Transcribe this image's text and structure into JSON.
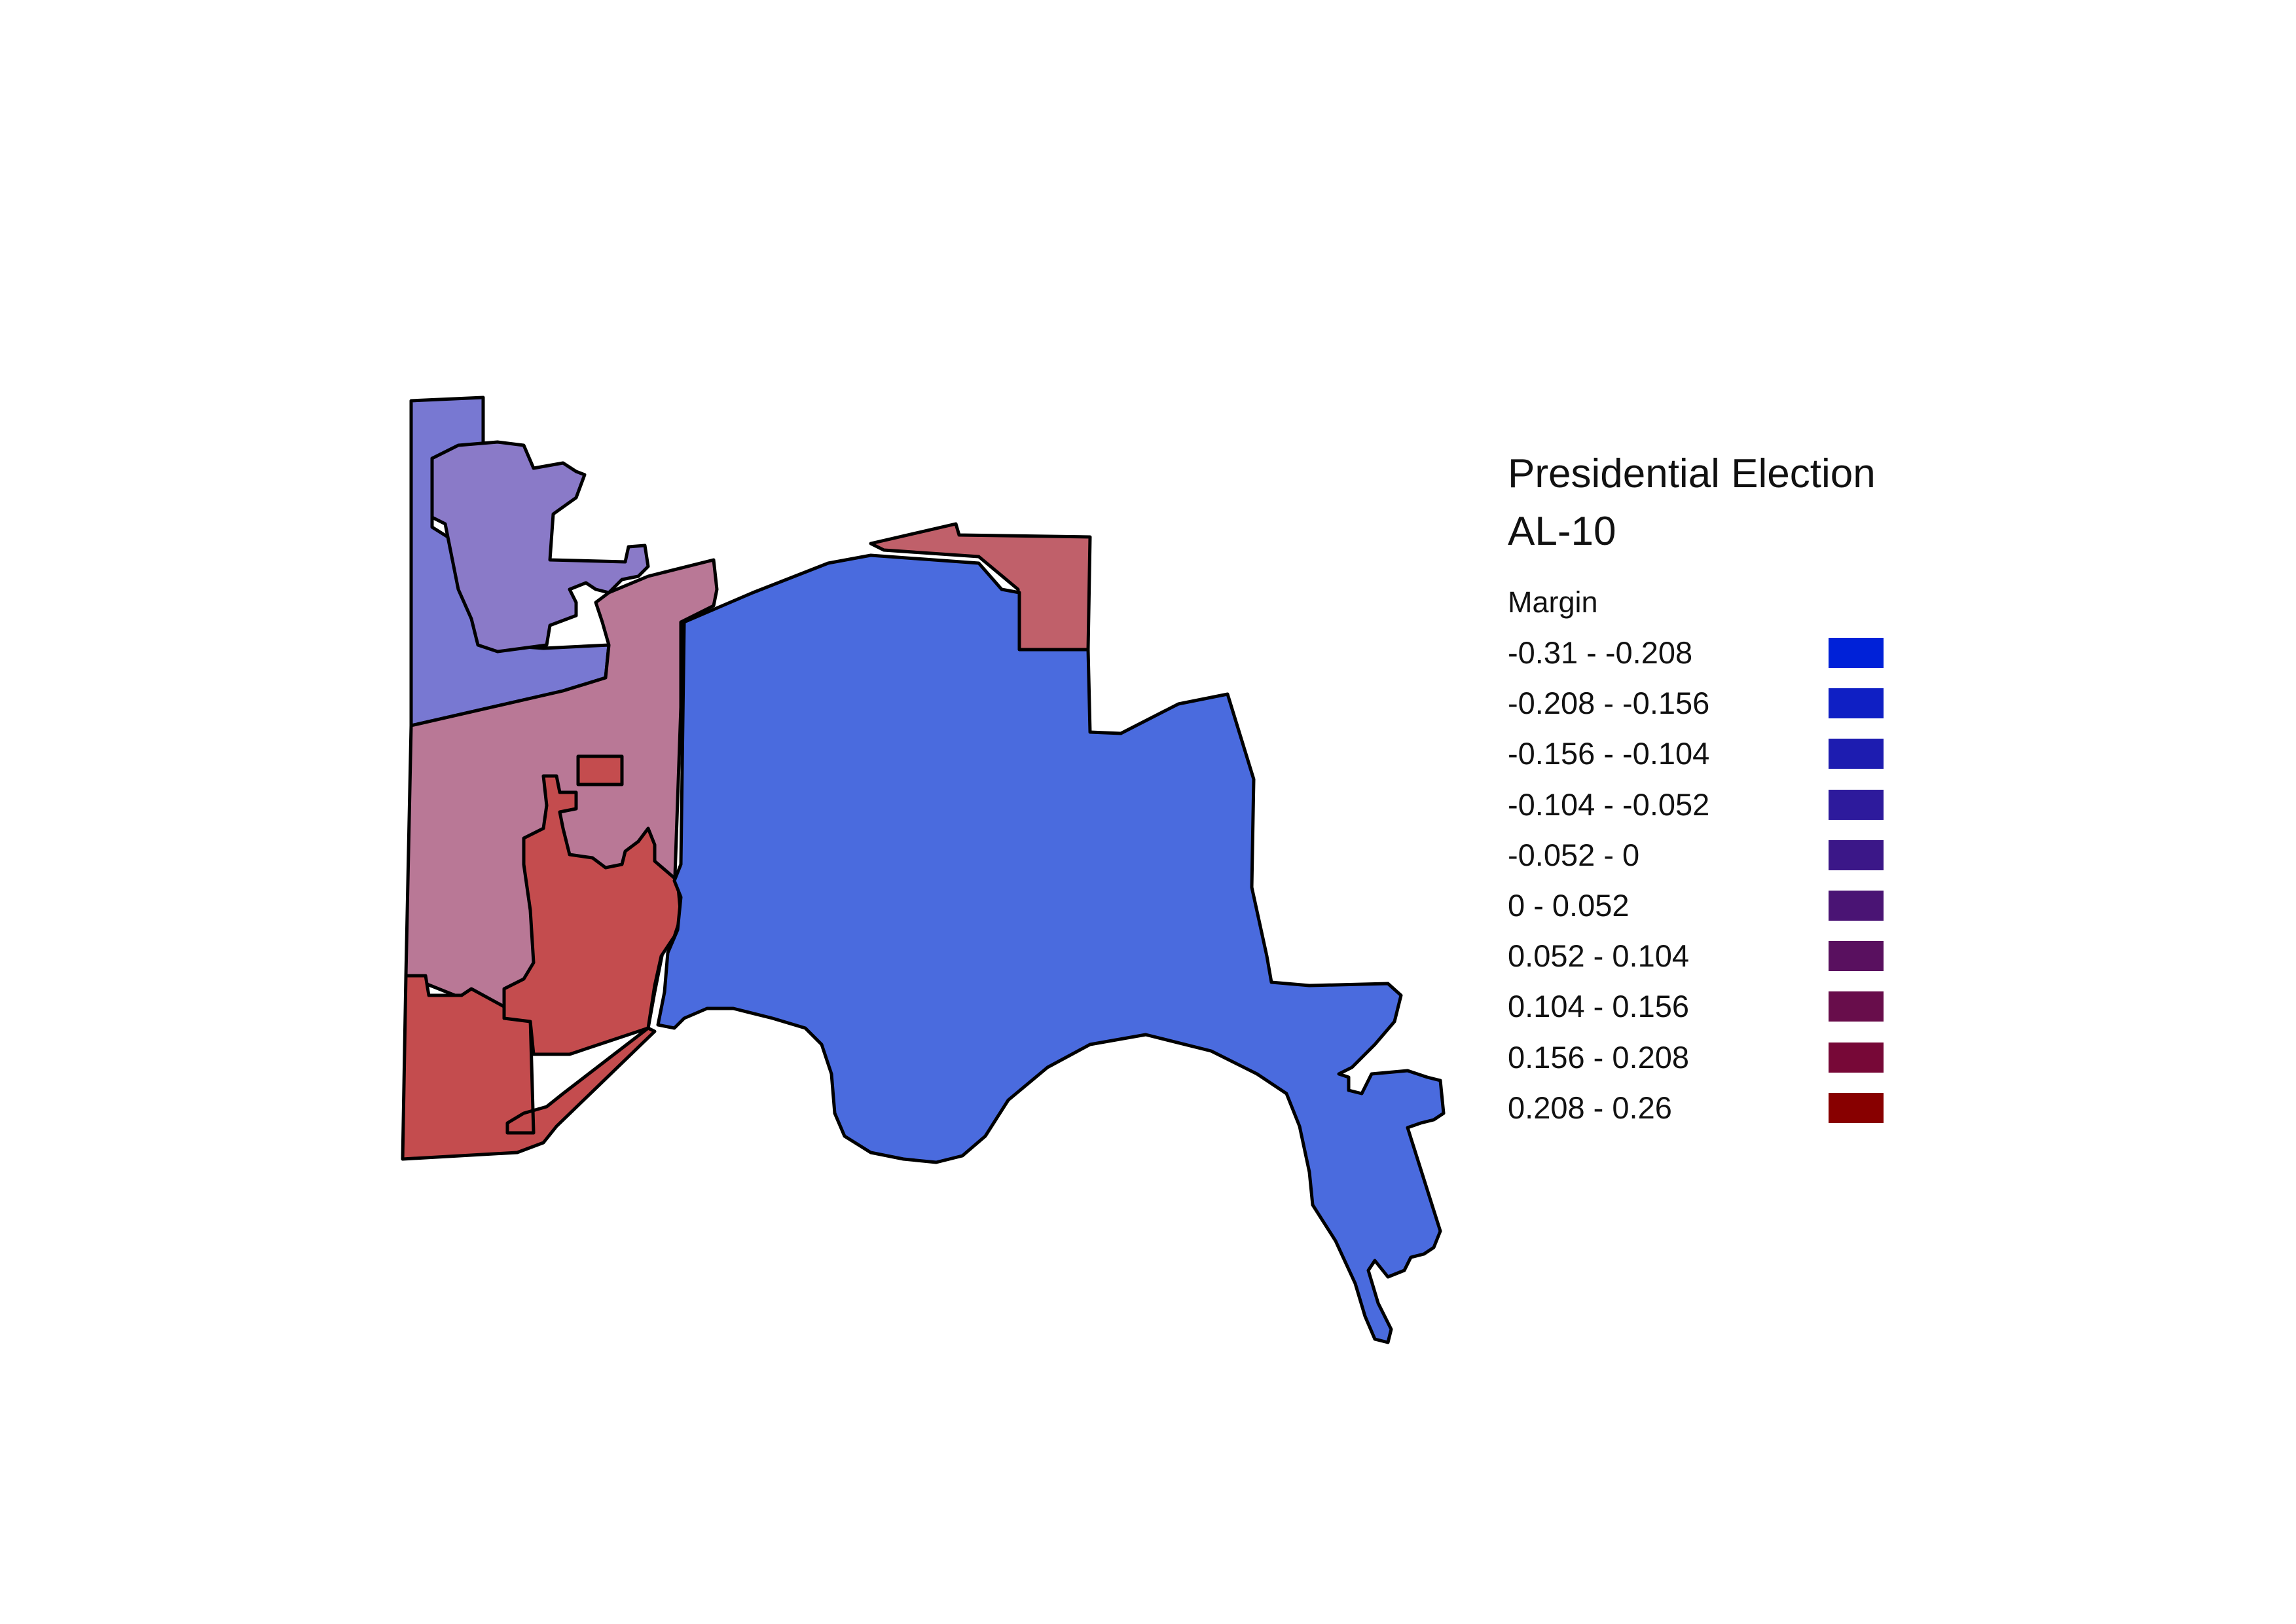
{
  "legend": {
    "title_line1": "Presidential Election",
    "title_line2": "AL-10",
    "subtitle": "Margin",
    "items": [
      {
        "label": "-0.31 - -0.208",
        "color": "#0021d8"
      },
      {
        "label": "-0.208 - -0.156",
        "color": "#0f1fc4"
      },
      {
        "label": "-0.156 - -0.104",
        "color": "#1d1cb0"
      },
      {
        "label": "-0.104 - -0.052",
        "color": "#2d1a9c"
      },
      {
        "label": "-0.052 - 0",
        "color": "#3b1788"
      },
      {
        "label": "0 - 0.052",
        "color": "#4a1474"
      },
      {
        "label": "0.052 - 0.104",
        "color": "#59105f"
      },
      {
        "label": "0.104 - 0.156",
        "color": "#680d4b"
      },
      {
        "label": "0.156 - 0.208",
        "color": "#770837"
      },
      {
        "label": "0.208 - 0.26",
        "color": "#880000"
      }
    ]
  },
  "precinct_fills": {
    "northwest_strip": "#7878d2",
    "northwest_inner": "#8a7ac8",
    "west_middle": "#b97896",
    "northeast_small": "#c0606a",
    "southwest": "#c44c4e",
    "central_inner": "#c44c4e",
    "main_blue": "#4a6bde"
  }
}
